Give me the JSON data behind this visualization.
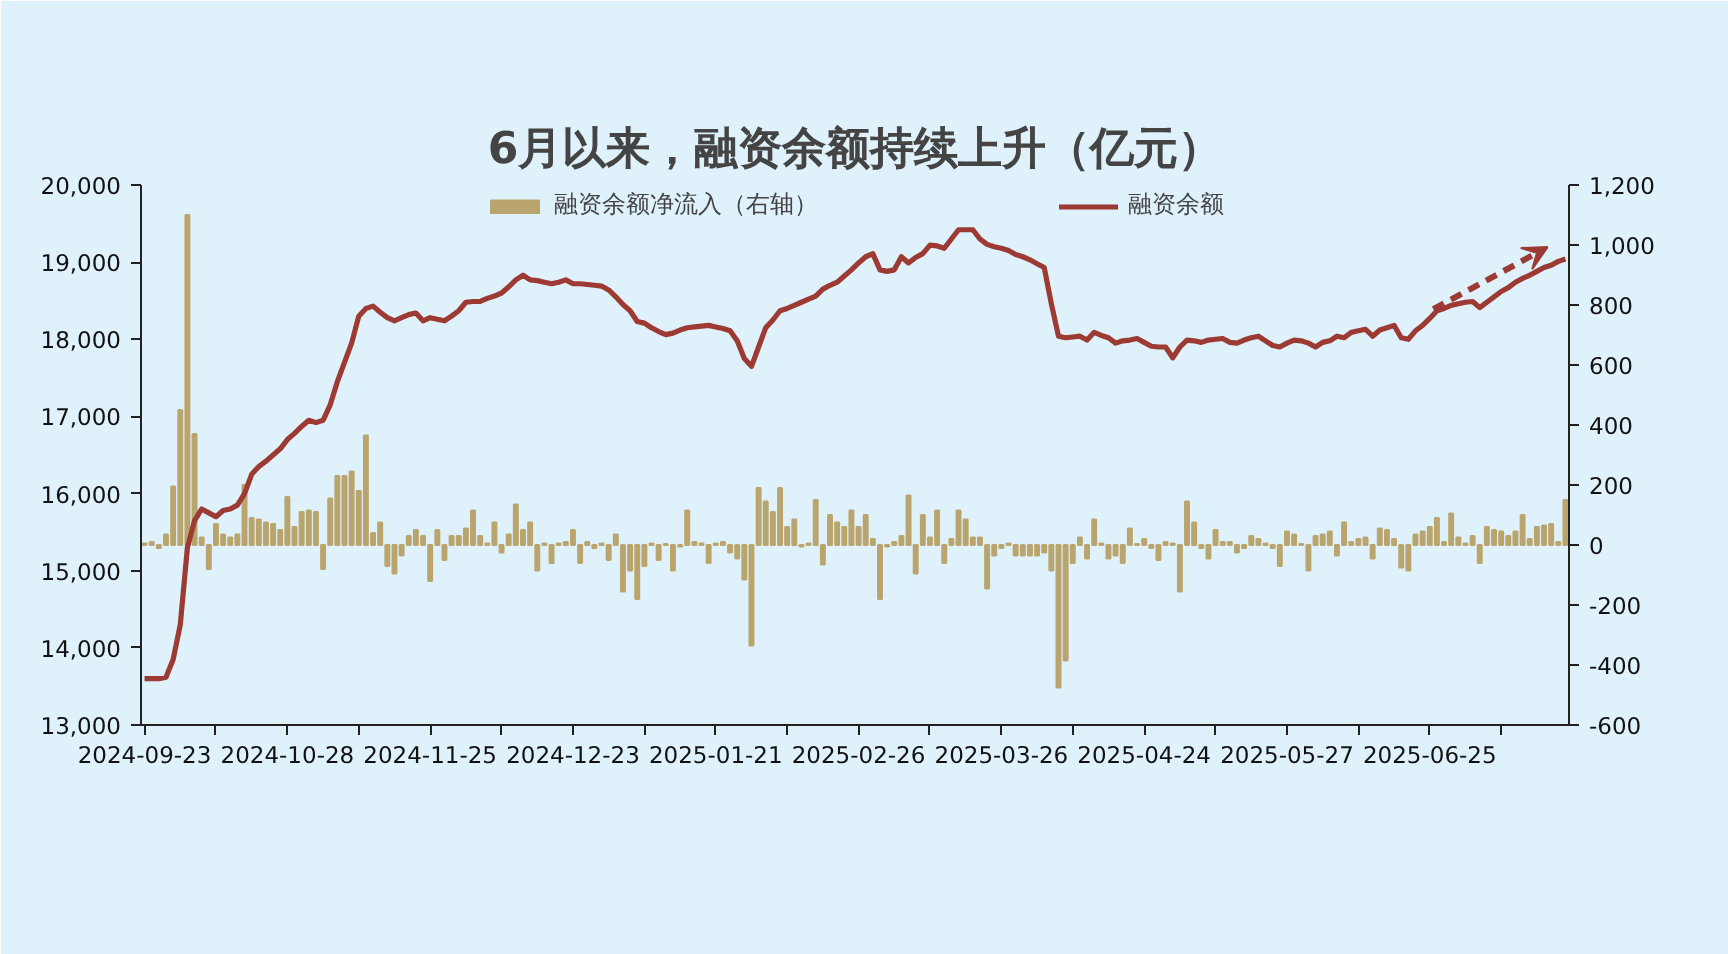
{
  "chart_data": {
    "type": "bar",
    "title": "6月以来，融资余额持续上升（亿元）",
    "legend": "top",
    "grid": false,
    "categories": [
      "2024-09-23",
      null,
      null,
      null,
      null,
      null,
      null,
      null,
      null,
      null,
      null,
      null,
      null,
      null,
      null,
      null,
      null,
      null,
      null,
      null,
      "2024-10-28",
      null,
      null,
      null,
      null,
      null,
      null,
      null,
      null,
      null,
      null,
      null,
      null,
      null,
      null,
      null,
      null,
      null,
      null,
      null,
      "2024-11-25",
      null,
      null,
      null,
      null,
      null,
      null,
      null,
      null,
      null,
      null,
      null,
      null,
      null,
      null,
      null,
      null,
      null,
      null,
      null,
      "2024-12-23",
      null,
      null,
      null,
      null,
      null,
      null,
      null,
      null,
      null,
      null,
      null,
      null,
      null,
      null,
      null,
      null,
      null,
      null,
      null,
      "2025-01-21",
      null,
      null,
      null,
      null,
      null,
      null,
      null,
      null,
      null,
      null,
      null,
      null,
      null,
      null,
      null,
      null,
      null,
      null,
      null,
      "2025-02-26",
      null,
      null,
      null,
      null,
      null,
      null,
      null,
      null,
      null,
      null,
      null,
      null,
      null,
      null,
      null,
      null,
      null,
      null,
      null,
      "2025-03-26",
      null,
      null,
      null,
      null,
      null,
      null,
      null,
      null,
      null,
      null,
      null,
      null,
      null,
      null,
      null,
      null,
      null,
      null,
      null,
      "2025-04-24",
      null,
      null,
      null,
      null,
      null,
      null,
      null,
      null,
      null,
      null,
      null,
      null,
      null,
      null,
      null,
      null,
      null,
      null,
      null,
      "2025-05-27",
      null,
      null,
      null,
      null,
      null,
      null,
      null,
      null,
      null,
      null,
      null,
      null,
      null,
      null,
      null,
      null,
      null,
      null,
      null,
      "2025-06-25",
      null,
      null,
      null,
      null,
      null,
      null,
      null,
      null,
      null,
      null,
      null,
      null,
      null,
      null,
      null,
      null,
      null,
      null,
      null
    ],
    "ylim": [
      13000,
      20000
    ],
    "yticks": [
      {
        "value": 13000,
        "label": "13,000"
      },
      {
        "value": 14000,
        "label": "14,000"
      },
      {
        "value": 15000,
        "label": "15,000"
      },
      {
        "value": 16000,
        "label": "16,000"
      },
      {
        "value": 17000,
        "label": "17,000"
      },
      {
        "value": 18000,
        "label": "18,000"
      },
      {
        "value": 19000,
        "label": "19,000"
      },
      {
        "value": 20000,
        "label": "20,000"
      }
    ],
    "y2lim": [
      -600,
      1200
    ],
    "y2ticks": [
      -600,
      -400,
      -200,
      0,
      200,
      400,
      600,
      800,
      {
        "value": 1000,
        "label": "1,000"
      },
      {
        "value": 1200,
        "label": "1,200"
      }
    ],
    "series": [
      {
        "name": "融资余额净流入（右轴）",
        "axis": "y2",
        "color": "#b9a56d",
        "values": [
          5,
          10,
          -10,
          35,
          195,
          450,
          1100,
          370,
          25,
          -80,
          70,
          35,
          25,
          35,
          200,
          90,
          85,
          75,
          70,
          50,
          160,
          60,
          110,
          115,
          110,
          -80,
          155,
          230,
          230,
          245,
          180,
          365,
          40,
          75,
          -70,
          -95,
          -35,
          30,
          50,
          30,
          -120,
          50,
          -50,
          30,
          30,
          55,
          115,
          30,
          5,
          75,
          -25,
          35,
          135,
          50,
          75,
          -85,
          5,
          -60,
          5,
          10,
          50,
          -60,
          10,
          -10,
          5,
          -50,
          35,
          -155,
          -85,
          -180,
          -70,
          5,
          -50,
          3,
          -85,
          -5,
          115,
          10,
          5,
          -60,
          5,
          10,
          -25,
          -45,
          -115,
          -335,
          190,
          145,
          110,
          190,
          60,
          85,
          -5,
          5,
          150,
          -65,
          100,
          75,
          60,
          115,
          60,
          100,
          20,
          -180,
          -5,
          10,
          30,
          165,
          -95,
          100,
          25,
          115,
          -60,
          20,
          115,
          85,
          25,
          25,
          -145,
          -35,
          -10,
          5,
          -35,
          -35,
          -35,
          -35,
          -25,
          -85,
          -475,
          -385,
          -60,
          25,
          -45,
          85,
          5,
          -45,
          -35,
          -60,
          55,
          3,
          20,
          -10,
          -50,
          10,
          5,
          -155,
          145,
          75,
          -10,
          -45,
          50,
          10,
          10,
          -25,
          -10,
          30,
          20,
          5,
          -10,
          -70,
          45,
          35,
          3,
          -85,
          30,
          35,
          45,
          -35,
          75,
          10,
          20,
          25,
          -45,
          55,
          50,
          20,
          -75,
          -85,
          35,
          45,
          60,
          90,
          10,
          105,
          25,
          5,
          30,
          -60,
          60,
          50,
          45,
          30,
          45,
          100,
          20,
          60,
          65,
          70,
          10,
          150
        ]
      },
      {
        "name": "融资余额",
        "type": "line",
        "color": "#9c3a33",
        "values": [
          13600,
          13600,
          13600,
          13620,
          13850,
          14300,
          15300,
          15650,
          15800,
          15750,
          15700,
          15780,
          15800,
          15850,
          16000,
          16250,
          16350,
          16420,
          16500,
          16580,
          16700,
          16780,
          16870,
          16950,
          16920,
          16950,
          17150,
          17450,
          17700,
          17950,
          18300,
          18400,
          18430,
          18350,
          18280,
          18240,
          18280,
          18320,
          18340,
          18240,
          18280,
          18260,
          18240,
          18300,
          18370,
          18480,
          18490,
          18490,
          18530,
          18560,
          18600,
          18680,
          18770,
          18830,
          18770,
          18760,
          18740,
          18720,
          18740,
          18770,
          18720,
          18720,
          18710,
          18700,
          18690,
          18640,
          18550,
          18450,
          18370,
          18230,
          18210,
          18150,
          18100,
          18060,
          18080,
          18120,
          18150,
          18160,
          18170,
          18180,
          18160,
          18140,
          18110,
          17980,
          17750,
          17650,
          17900,
          18150,
          18250,
          18370,
          18400,
          18440,
          18480,
          18520,
          18560,
          18650,
          18700,
          18740,
          18820,
          18900,
          18990,
          19070,
          19110,
          18900,
          18880,
          18900,
          19070,
          18990,
          19060,
          19110,
          19220,
          19210,
          19180,
          19300,
          19420,
          19420,
          19420,
          19300,
          19230,
          19200,
          19180,
          19150,
          19100,
          19070,
          19030,
          18980,
          18930,
          18460,
          18040,
          18020,
          18030,
          18040,
          17990,
          18090,
          18050,
          18020,
          17950,
          17980,
          17990,
          18010,
          17960,
          17910,
          17900,
          17900,
          17760,
          17900,
          17990,
          17980,
          17960,
          17990,
          18000,
          18010,
          17960,
          17950,
          17990,
          18020,
          18040,
          17980,
          17920,
          17900,
          17950,
          17990,
          17980,
          17950,
          17900,
          17960,
          17980,
          18040,
          18020,
          18090,
          18110,
          18130,
          18040,
          18120,
          18150,
          18180,
          18020,
          18000,
          18110,
          18180,
          18270,
          18370,
          18400,
          18440,
          18460,
          18480,
          18490,
          18410,
          18480,
          18550,
          18620,
          18670,
          18740,
          18790,
          18830,
          18880,
          18930,
          18960,
          19010,
          19040
        ]
      }
    ]
  }
}
